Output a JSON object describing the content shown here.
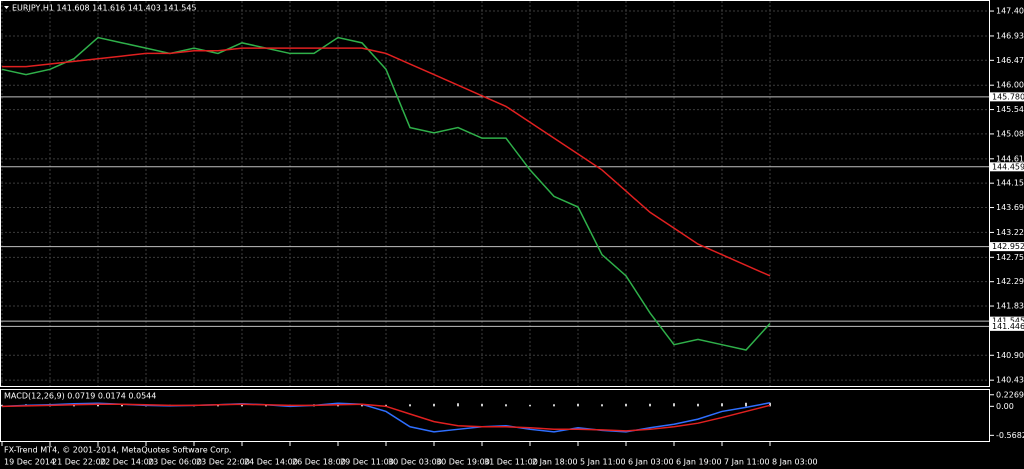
{
  "chart_data": [
    {
      "type": "line",
      "title": "EURJPY,H1 141.608 141.616 141.403 141.545",
      "categories": [
        "19 Dec 2014",
        null,
        "21 Dec 22:00",
        null,
        "22 Dec 14:00",
        null,
        "23 Dec 06:00",
        null,
        "23 Dec 22:00",
        null,
        "24 Dec 14:00",
        null,
        "26 Dec 18:00",
        null,
        "29 Dec 11:00",
        null,
        "30 Dec 03:00",
        null,
        "30 Dec 19:00",
        null,
        "31 Dec 11:00",
        null,
        "2 Jan 18:00",
        null,
        "5 Jan 11:00",
        null,
        "6 Jan 03:00",
        null,
        "6 Jan 19:00",
        null,
        "7 Jan 11:00",
        null,
        "8 Jan 03:00"
      ],
      "series": [
        {
          "color": "#2fb04a",
          "values": [
            146.3,
            146.2,
            146.3,
            146.5,
            146.9,
            146.8,
            146.7,
            146.6,
            146.7,
            146.6,
            146.8,
            146.7,
            146.6,
            146.6,
            146.9,
            146.8,
            146.3,
            145.2,
            145.1,
            145.2,
            145.0,
            145.0,
            144.4,
            143.9,
            143.7,
            142.8,
            142.4,
            141.7,
            141.1,
            141.2,
            141.1,
            141.0,
            141.5
          ]
        },
        {
          "color": "#e02020",
          "values": [
            146.35,
            146.35,
            146.4,
            146.45,
            146.5,
            146.55,
            146.6,
            146.6,
            146.65,
            146.65,
            146.7,
            146.7,
            146.7,
            146.7,
            146.7,
            146.7,
            146.6,
            146.4,
            146.2,
            146.0,
            145.8,
            145.6,
            145.3,
            145.0,
            144.7,
            144.4,
            144.0,
            143.6,
            143.3,
            143.0,
            142.8,
            142.6,
            142.4
          ]
        }
      ],
      "ylim": [
        140.32,
        147.59
      ],
      "yticks": [
        {
          "value": 147.4,
          "label": "147.400"
        },
        {
          "value": 146.93,
          "label": "146.930"
        },
        {
          "value": 146.47,
          "label": "146.470"
        },
        {
          "value": 146.0,
          "label": "146.000"
        },
        {
          "value": 145.54,
          "label": "145.540"
        },
        {
          "value": 145.08,
          "label": "145.080"
        },
        {
          "value": 144.61,
          "label": "144.610"
        },
        {
          "value": 144.15,
          "label": "144.150"
        },
        {
          "value": 143.69,
          "label": "143.690"
        },
        {
          "value": 143.22,
          "label": "143.220"
        },
        {
          "value": 142.75,
          "label": "142.750"
        },
        {
          "value": 142.29,
          "label": "142.290"
        },
        {
          "value": 141.83,
          "label": "141.830"
        },
        {
          "value": 140.9,
          "label": "140.900"
        },
        {
          "value": 140.43,
          "label": "140.430"
        }
      ],
      "levels": [
        {
          "value": 145.78,
          "label": "145.780"
        },
        {
          "value": 144.459,
          "label": "144.459"
        },
        {
          "value": 142.952,
          "label": "142.952"
        },
        {
          "value": 141.545,
          "label": "141.545"
        },
        {
          "value": 141.446,
          "label": "141.446"
        }
      ],
      "grid": true,
      "footer": "FX-Trend MT4, © 2001-2014, MetaQuotes Software Corp."
    },
    {
      "type": "bar",
      "title": "MACD(12,26,9) 0.0719 0.0174 0.0544",
      "values": [
        0.03,
        0.04,
        0.05,
        0.06,
        0.07,
        0.05,
        0.04,
        0.03,
        0.03,
        0.04,
        0.05,
        0.04,
        0.03,
        0.04,
        0.05,
        0.05,
        0.03,
        0.04,
        0.05,
        0.06,
        0.05,
        0.04,
        0.03,
        0.04,
        0.05,
        0.04,
        0.05,
        0.05,
        0.06,
        0.05,
        0.06,
        0.07,
        0.07
      ],
      "color": "#d0d0d0",
      "series": [
        {
          "color": "#2f6fff",
          "values": [
            0.0,
            0.02,
            0.03,
            0.05,
            0.06,
            0.04,
            0.02,
            0.01,
            0.02,
            0.03,
            0.05,
            0.03,
            0.0,
            0.02,
            0.06,
            0.04,
            -0.1,
            -0.4,
            -0.5,
            -0.45,
            -0.4,
            -0.38,
            -0.45,
            -0.5,
            -0.42,
            -0.47,
            -0.5,
            -0.42,
            -0.35,
            -0.25,
            -0.1,
            -0.02,
            0.07
          ]
        },
        {
          "color": "#e02020",
          "values": [
            0.0,
            0.01,
            0.02,
            0.03,
            0.04,
            0.04,
            0.03,
            0.02,
            0.02,
            0.03,
            0.04,
            0.03,
            0.02,
            0.02,
            0.03,
            0.04,
            0.0,
            -0.15,
            -0.3,
            -0.38,
            -0.4,
            -0.4,
            -0.42,
            -0.45,
            -0.45,
            -0.46,
            -0.48,
            -0.45,
            -0.4,
            -0.33,
            -0.22,
            -0.1,
            0.02
          ]
        }
      ],
      "ylim": [
        -0.679,
        0.32
      ],
      "yticks": [
        {
          "value": 0.2269,
          "label": "0.2269"
        },
        {
          "value": 0,
          "label": "0.00"
        },
        {
          "value": -0.5682,
          "label": "-0.5682"
        }
      ]
    }
  ]
}
